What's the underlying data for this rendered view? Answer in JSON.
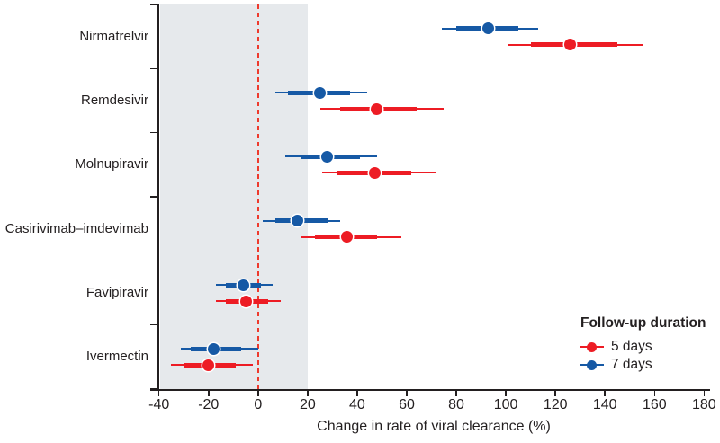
{
  "figure": {
    "background": "#ffffff",
    "text_color": "#231f20"
  },
  "chart_data": {
    "type": "scatter",
    "subtype": "forest-dot-interval",
    "title": "",
    "xlabel": "Change in rate of viral clearance (%)",
    "ylabel": "",
    "xlim": [
      -40,
      180
    ],
    "xticks": [
      -40,
      -20,
      0,
      20,
      40,
      60,
      80,
      100,
      120,
      140,
      160,
      180
    ],
    "grid": false,
    "reference_line": {
      "x": 0,
      "style": "dashed",
      "color": "#ee3a2d"
    },
    "shaded_region": {
      "from": -40,
      "to": 20,
      "color": "#e6e9ec"
    },
    "categories": [
      "Nirmatrelvir",
      "Remdesivir",
      "Molnupiravir",
      "Casirivimab–imdevimab",
      "Favipiravir",
      "Ivermectin"
    ],
    "series": [
      {
        "name": "5 days",
        "color": "#ed1c24",
        "points": [
          {
            "category": "Nirmatrelvir",
            "estimate": 126,
            "outer": [
              101,
              155
            ],
            "inner": [
              110,
              145
            ]
          },
          {
            "category": "Remdesivir",
            "estimate": 48,
            "outer": [
              25,
              75
            ],
            "inner": [
              33,
              64
            ]
          },
          {
            "category": "Molnupiravir",
            "estimate": 47,
            "outer": [
              26,
              72
            ],
            "inner": [
              32,
              62
            ]
          },
          {
            "category": "Casirivimab–imdevimab",
            "estimate": 36,
            "outer": [
              17,
              58
            ],
            "inner": [
              23,
              48
            ]
          },
          {
            "category": "Favipiravir",
            "estimate": -5,
            "outer": [
              -17,
              9
            ],
            "inner": [
              -13,
              4
            ]
          },
          {
            "category": "Ivermectin",
            "estimate": -20,
            "outer": [
              -35,
              -2
            ],
            "inner": [
              -30,
              -9
            ]
          }
        ]
      },
      {
        "name": "7 days",
        "color": "#1659a5",
        "points": [
          {
            "category": "Nirmatrelvir",
            "estimate": 93,
            "outer": [
              74,
              113
            ],
            "inner": [
              80,
              105
            ]
          },
          {
            "category": "Remdesivir",
            "estimate": 25,
            "outer": [
              7,
              44
            ],
            "inner": [
              12,
              37
            ]
          },
          {
            "category": "Molnupiravir",
            "estimate": 28,
            "outer": [
              11,
              48
            ],
            "inner": [
              17,
              41
            ]
          },
          {
            "category": "Casirivimab–imdevimab",
            "estimate": 16,
            "outer": [
              2,
              33
            ],
            "inner": [
              7,
              28
            ]
          },
          {
            "category": "Favipiravir",
            "estimate": -6,
            "outer": [
              -17,
              6
            ],
            "inner": [
              -13,
              1
            ]
          },
          {
            "category": "Ivermectin",
            "estimate": -18,
            "outer": [
              -31,
              0
            ],
            "inner": [
              -27,
              -7
            ]
          }
        ]
      }
    ],
    "legend": {
      "title": "Follow-up duration",
      "position": "bottom-right",
      "items": [
        {
          "label": "5 days",
          "color": "#ed1c24"
        },
        {
          "label": "7 days",
          "color": "#1659a5"
        }
      ]
    }
  }
}
